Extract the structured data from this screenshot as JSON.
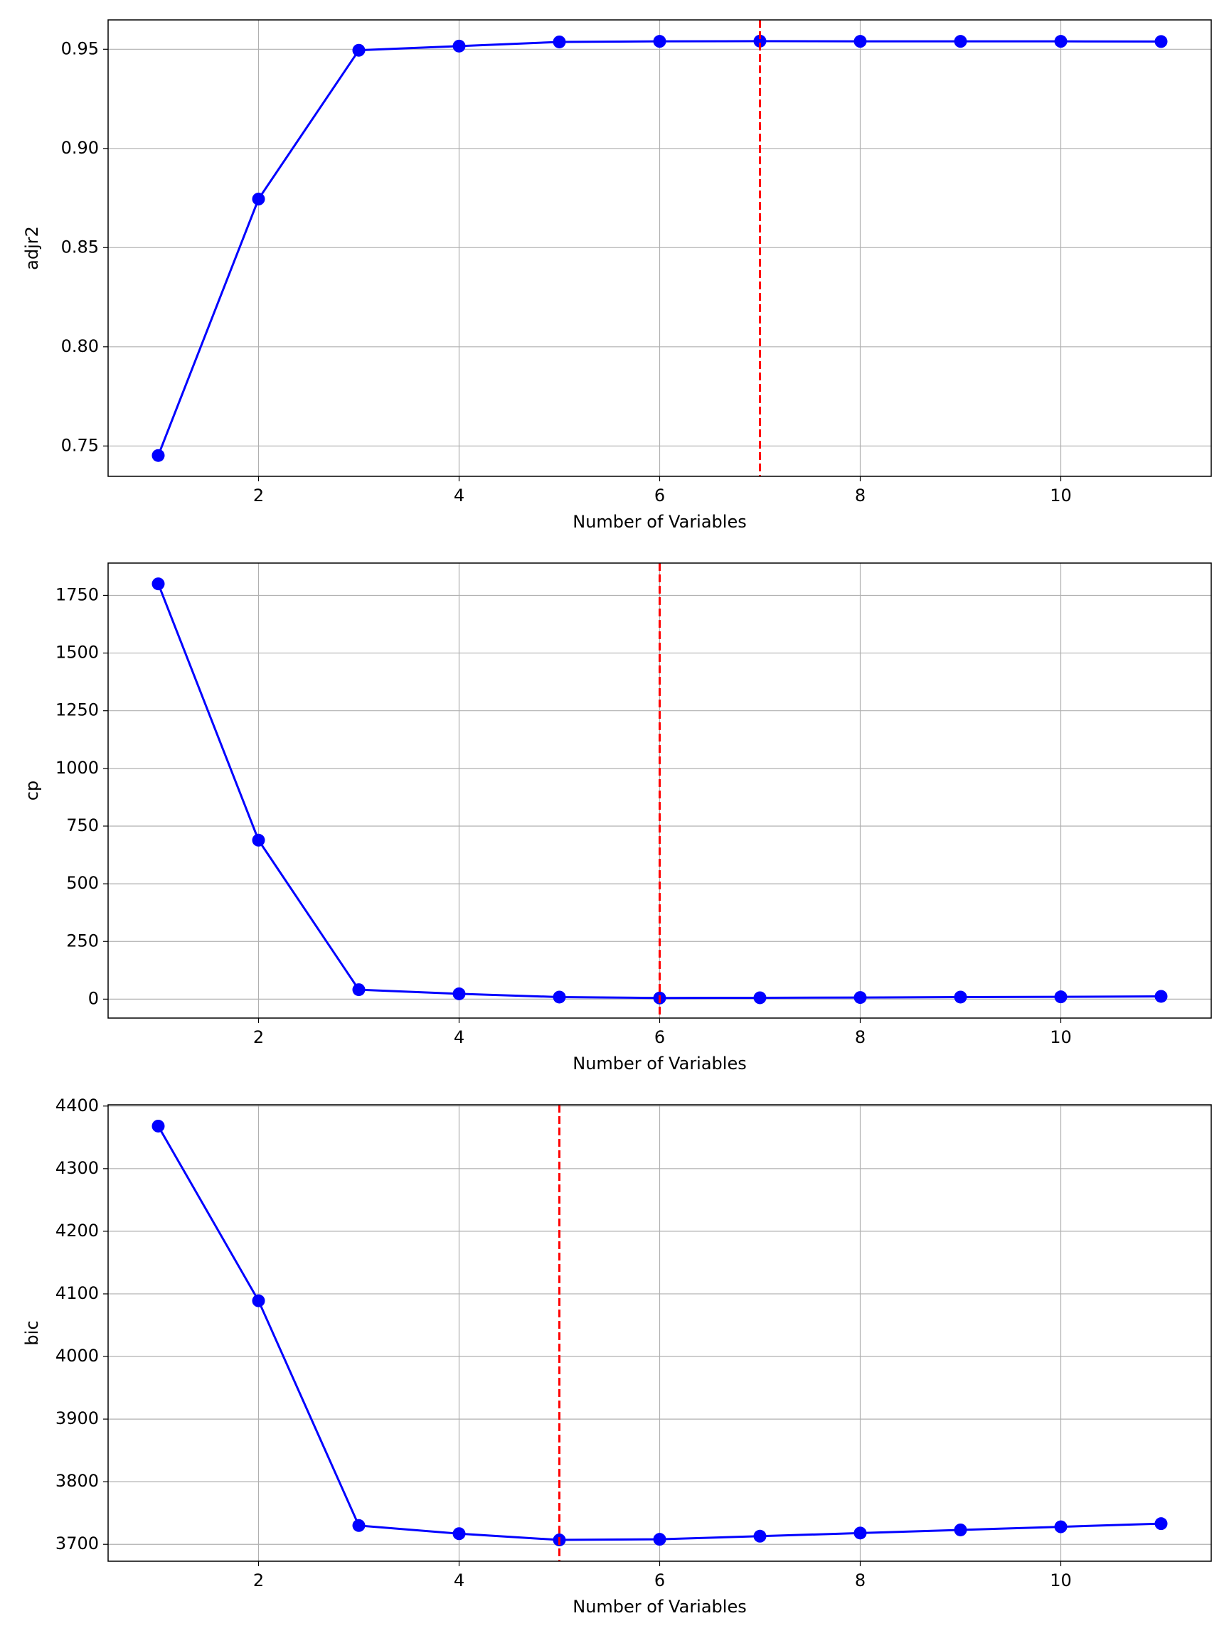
{
  "chart_data": [
    {
      "type": "line",
      "ylabel": "adjr2",
      "xlabel": "Number of Variables",
      "x": [
        1,
        2,
        3,
        4,
        5,
        6,
        7,
        8,
        9,
        10,
        11
      ],
      "values": [
        0.7452,
        0.8745,
        0.9495,
        0.9516,
        0.9537,
        0.954,
        0.9541,
        0.954,
        0.954,
        0.954,
        0.9539
      ],
      "color": "#0000ff",
      "marker": "circle",
      "xlim": [
        0.5,
        11.5
      ],
      "xticks": [
        2,
        4,
        6,
        8,
        10
      ],
      "ylim": [
        0.7347,
        0.9648
      ],
      "yticks": [
        0.75,
        {
          "value": 0.8,
          "label": "0.80"
        },
        0.85,
        {
          "value": 0.9,
          "label": "0.90"
        },
        0.95
      ],
      "grid": true,
      "vline_x": 7,
      "vline_color": "#ff0000",
      "vline_style": "dashed"
    },
    {
      "type": "line",
      "ylabel": "cp",
      "xlabel": "Number of Variables",
      "x": [
        1,
        2,
        3,
        4,
        5,
        6,
        7,
        8,
        9,
        10,
        11
      ],
      "values": [
        1800,
        689,
        41,
        23,
        9,
        5,
        6,
        7,
        9,
        10,
        12
      ],
      "color": "#0000ff",
      "marker": "circle",
      "xlim": [
        0.5,
        11.5
      ],
      "xticks": [
        2,
        4,
        6,
        8,
        10
      ],
      "ylim": [
        -82,
        1890
      ],
      "yticks": [
        0,
        250,
        500,
        750,
        1000,
        1250,
        1500,
        1750
      ],
      "grid": true,
      "vline_x": 6,
      "vline_color": "#ff0000",
      "vline_style": "dashed"
    },
    {
      "type": "line",
      "ylabel": "bic",
      "xlabel": "Number of Variables",
      "x": [
        1,
        2,
        3,
        4,
        5,
        6,
        7,
        8,
        9,
        10,
        11
      ],
      "values": [
        4368,
        4089,
        3730,
        3717,
        3707,
        3708,
        3713,
        3718,
        3723,
        3728,
        3733
      ],
      "color": "#0000ff",
      "marker": "circle",
      "xlim": [
        0.5,
        11.5
      ],
      "xticks": [
        2,
        4,
        6,
        8,
        10
      ],
      "ylim": [
        3673,
        4402
      ],
      "yticks": [
        3700,
        3800,
        3900,
        4000,
        4100,
        4200,
        4300,
        4400
      ],
      "grid": true,
      "vline_x": 5,
      "vline_color": "#ff0000",
      "vline_style": "dashed"
    }
  ]
}
